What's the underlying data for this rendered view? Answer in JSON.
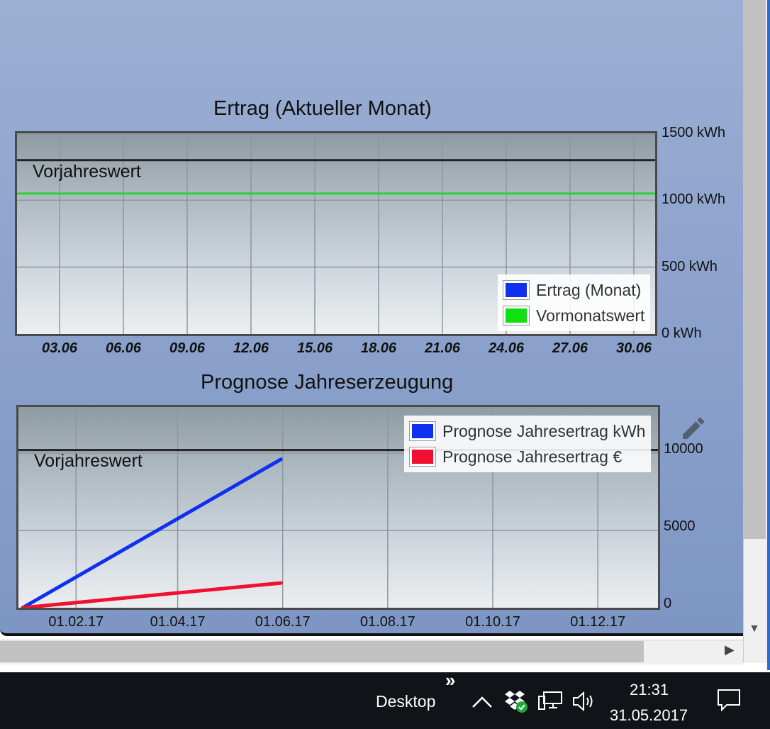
{
  "chart1": {
    "title": "Ertrag (Aktueller Monat)",
    "reference_label": "Vorjahreswert",
    "legend": [
      {
        "label": "Ertrag (Monat)",
        "color": "#1030f0"
      },
      {
        "label": "Vormonatswert",
        "color": "#10e010"
      }
    ]
  },
  "chart2": {
    "title": "Prognose Jahreserzeugung",
    "reference_label": "Vorjahreswert",
    "legend": [
      {
        "label": "Prognose Jahresertrag kWh",
        "color": "#1030f0"
      },
      {
        "label": "Prognose Jahresertrag €",
        "color": "#f01030"
      }
    ]
  },
  "chart_data": [
    {
      "type": "line",
      "title": "Ertrag (Aktueller Monat)",
      "x_ticks": [
        "03.06",
        "06.06",
        "09.06",
        "12.06",
        "15.06",
        "18.06",
        "21.06",
        "24.06",
        "27.06",
        "30.06"
      ],
      "y_ticks": [
        "1500 kWh",
        "1000 kWh",
        "500 kWh",
        "0 kWh"
      ],
      "ylim": [
        0,
        1500
      ],
      "y_unit": "kWh",
      "xlim_day": [
        1,
        31
      ],
      "series": [
        {
          "name": "Ertrag (Monat)",
          "color": "#1030f0",
          "values": []
        },
        {
          "name": "Vormonatswert",
          "color": "#2bd42b",
          "constant": 1050
        }
      ],
      "reference": {
        "label": "Vorjahreswert",
        "value": 1300,
        "color": "#222222"
      },
      "grid": true,
      "legend_position": "bottom-right"
    },
    {
      "type": "line",
      "title": "Prognose Jahreserzeugung",
      "x_ticks": [
        "01.02.17",
        "01.04.17",
        "01.06.17",
        "01.08.17",
        "01.10.17",
        "01.12.17"
      ],
      "y_ticks": [
        "10000",
        "5000",
        "0"
      ],
      "ylim": [
        0,
        13300
      ],
      "series": [
        {
          "name": "Prognose Jahresertrag kWh",
          "color": "#1030f0",
          "points": [
            [
              "2017-01-01",
              0
            ],
            [
              "2017-05-31",
              9600
            ]
          ]
        },
        {
          "name": "Prognose Jahresertrag €",
          "color": "#f01030",
          "points": [
            [
              "2017-01-01",
              0
            ],
            [
              "2017-05-31",
              1600
            ]
          ]
        }
      ],
      "reference": {
        "label": "Vorjahreswert",
        "value": 10200,
        "color": "#222222"
      },
      "grid": true,
      "legend_position": "top-right"
    }
  ],
  "taskbar": {
    "toolbar_label": "Desktop",
    "overflow_glyph": "»",
    "time": "21:31",
    "date": "31.05.2017"
  },
  "icons": {
    "edit": "pencil-icon",
    "tray_up": "chevron-up-icon",
    "dropbox": "dropbox-icon",
    "network": "network-icon",
    "volume": "speaker-icon",
    "notifications": "notification-icon"
  }
}
